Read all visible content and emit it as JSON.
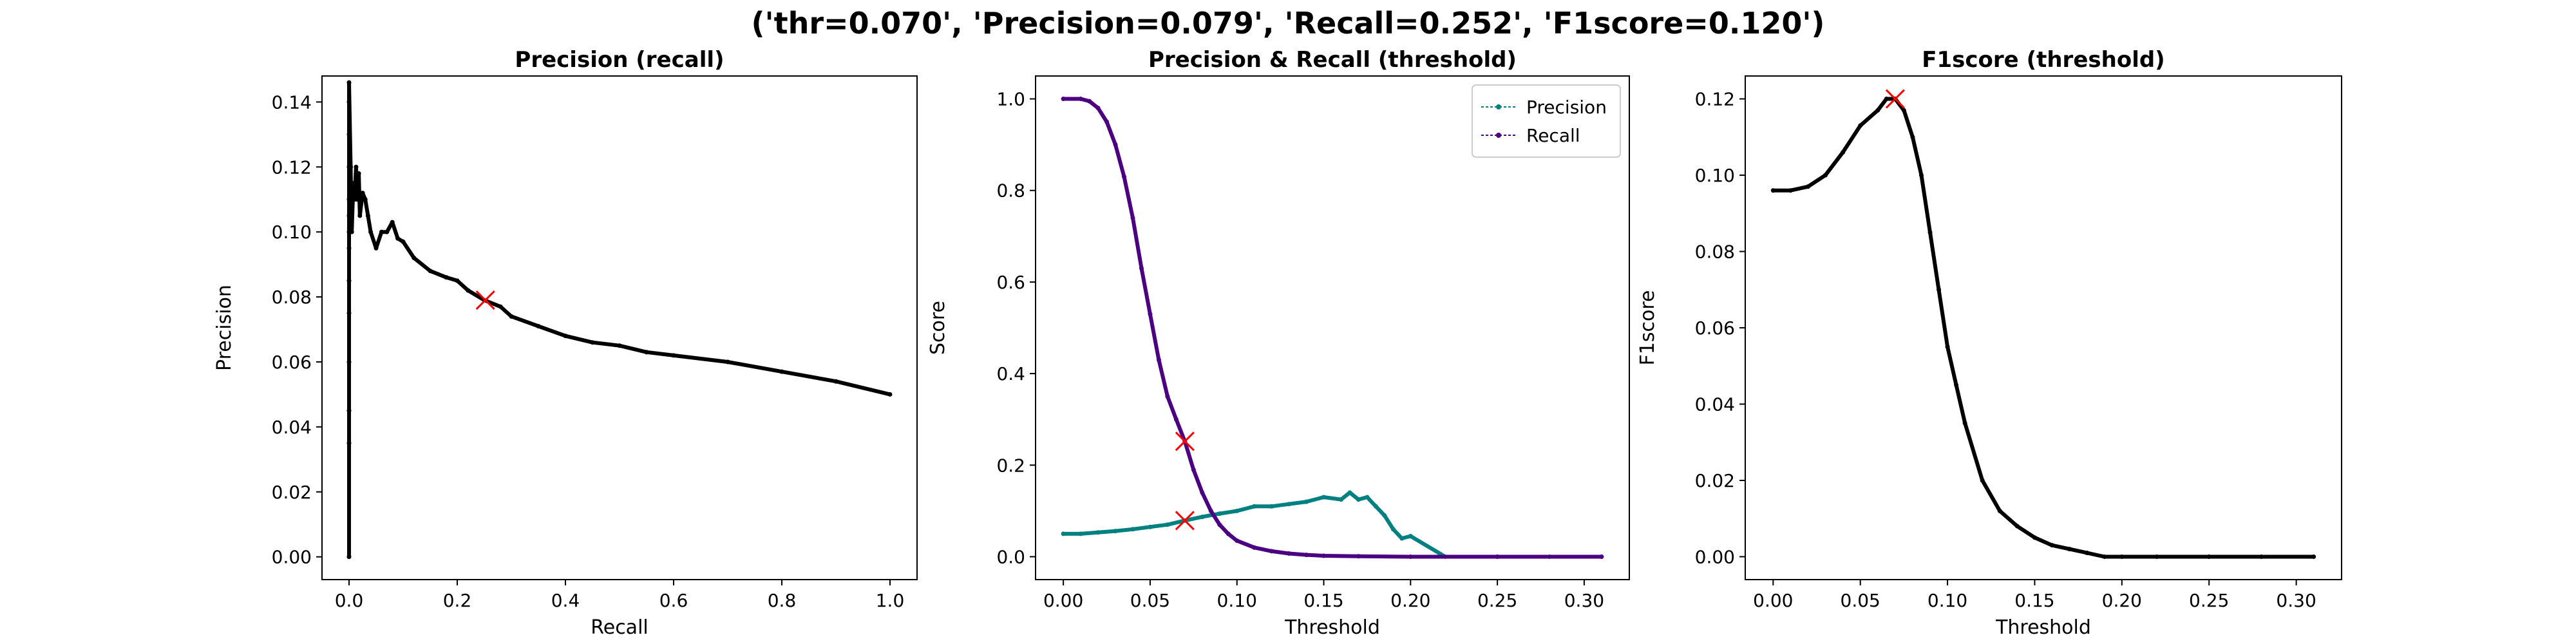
{
  "figure": {
    "suptitle": "('thr=0.070', 'Precision=0.079', 'Recall=0.252', 'F1score=0.120')",
    "colors": {
      "precision": "#008080",
      "recall": "#4b0082",
      "pr_curve": "#000000",
      "f1": "#000000",
      "marker": "#ff0000"
    }
  },
  "chart_data": [
    {
      "type": "line",
      "title": "Precision (recall)",
      "xlabel": "Recall",
      "ylabel": "Precision",
      "xlim": [
        -0.05,
        1.05
      ],
      "ylim": [
        -0.007,
        0.148
      ],
      "xticks": [
        "0.0",
        "0.2",
        "0.4",
        "0.6",
        "0.8",
        "1.0"
      ],
      "yticks": [
        "0.00",
        "0.02",
        "0.04",
        "0.06",
        "0.08",
        "0.10",
        "0.12",
        "0.14"
      ],
      "grid": false,
      "series": [
        {
          "color": "#000000",
          "x": [
            0.0,
            0.0,
            0.0,
            0.0,
            0.0,
            0.0,
            0.0,
            0.0,
            0.0,
            0.0,
            0.0,
            0.0,
            0.0,
            0.0,
            0.003,
            0.005,
            0.008,
            0.01,
            0.013,
            0.015,
            0.018,
            0.02,
            0.025,
            0.03,
            0.035,
            0.04,
            0.05,
            0.06,
            0.07,
            0.08,
            0.09,
            0.1,
            0.12,
            0.15,
            0.18,
            0.2,
            0.22,
            0.25,
            0.28,
            0.3,
            0.35,
            0.4,
            0.45,
            0.5,
            0.55,
            0.6,
            0.7,
            0.8,
            0.9,
            1.0
          ],
          "y": [
            0.0,
            0.035,
            0.045,
            0.06,
            0.075,
            0.085,
            0.095,
            0.1,
            0.105,
            0.11,
            0.12,
            0.13,
            0.14,
            0.146,
            0.12,
            0.1,
            0.115,
            0.11,
            0.12,
            0.11,
            0.118,
            0.105,
            0.112,
            0.11,
            0.105,
            0.1,
            0.095,
            0.1,
            0.1,
            0.103,
            0.098,
            0.097,
            0.092,
            0.088,
            0.086,
            0.085,
            0.082,
            0.079,
            0.077,
            0.074,
            0.071,
            0.068,
            0.066,
            0.065,
            0.063,
            0.062,
            0.06,
            0.057,
            0.054,
            0.05
          ]
        }
      ],
      "markers": [
        {
          "x": 0.252,
          "y": 0.079
        }
      ]
    },
    {
      "type": "line",
      "title": "Precision & Recall (threshold)",
      "xlabel": "Threshold",
      "ylabel": "Score",
      "xlim": [
        -0.016,
        0.326
      ],
      "ylim": [
        -0.05,
        1.05
      ],
      "xticks": [
        "0.00",
        "0.05",
        "0.10",
        "0.15",
        "0.20",
        "0.25",
        "0.30"
      ],
      "yticks": [
        "0.0",
        "0.2",
        "0.4",
        "0.6",
        "0.8",
        "1.0"
      ],
      "grid": false,
      "legend": {
        "position": "top-right"
      },
      "series": [
        {
          "name": "Precision",
          "color": "#008080",
          "x": [
            0.0,
            0.01,
            0.02,
            0.03,
            0.04,
            0.05,
            0.06,
            0.07,
            0.08,
            0.09,
            0.1,
            0.11,
            0.12,
            0.13,
            0.14,
            0.15,
            0.16,
            0.165,
            0.17,
            0.175,
            0.18,
            0.185,
            0.19,
            0.195,
            0.2,
            0.22,
            0.25,
            0.28,
            0.31
          ],
          "y": [
            0.05,
            0.05,
            0.053,
            0.056,
            0.06,
            0.065,
            0.07,
            0.079,
            0.087,
            0.094,
            0.1,
            0.11,
            0.11,
            0.115,
            0.12,
            0.13,
            0.125,
            0.14,
            0.125,
            0.13,
            0.11,
            0.09,
            0.06,
            0.04,
            0.045,
            0.0,
            0.0,
            0.0,
            0.0
          ]
        },
        {
          "name": "Recall",
          "color": "#4b0082",
          "x": [
            0.0,
            0.01,
            0.015,
            0.02,
            0.025,
            0.03,
            0.035,
            0.04,
            0.045,
            0.05,
            0.055,
            0.06,
            0.065,
            0.07,
            0.075,
            0.08,
            0.085,
            0.09,
            0.095,
            0.1,
            0.11,
            0.12,
            0.13,
            0.14,
            0.15,
            0.17,
            0.2,
            0.25,
            0.31
          ],
          "y": [
            1.0,
            1.0,
            0.995,
            0.98,
            0.95,
            0.9,
            0.83,
            0.74,
            0.63,
            0.53,
            0.43,
            0.35,
            0.3,
            0.252,
            0.19,
            0.14,
            0.1,
            0.07,
            0.05,
            0.035,
            0.02,
            0.012,
            0.007,
            0.004,
            0.002,
            0.001,
            0.0,
            0.0,
            0.0
          ]
        }
      ],
      "markers": [
        {
          "x": 0.07,
          "y": 0.252
        },
        {
          "x": 0.07,
          "y": 0.079
        }
      ]
    },
    {
      "type": "line",
      "title": "F1score (threshold)",
      "xlabel": "Threshold",
      "ylabel": "F1score",
      "xlim": [
        -0.016,
        0.326
      ],
      "ylim": [
        -0.006,
        0.126
      ],
      "xticks": [
        "0.00",
        "0.05",
        "0.10",
        "0.15",
        "0.20",
        "0.25",
        "0.30"
      ],
      "yticks": [
        "0.00",
        "0.02",
        "0.04",
        "0.06",
        "0.08",
        "0.10",
        "0.12"
      ],
      "grid": false,
      "series": [
        {
          "color": "#000000",
          "x": [
            0.0,
            0.01,
            0.02,
            0.03,
            0.04,
            0.05,
            0.06,
            0.065,
            0.07,
            0.075,
            0.08,
            0.085,
            0.09,
            0.095,
            0.1,
            0.105,
            0.11,
            0.12,
            0.13,
            0.14,
            0.15,
            0.16,
            0.17,
            0.18,
            0.19,
            0.2,
            0.22,
            0.25,
            0.28,
            0.31
          ],
          "y": [
            0.096,
            0.096,
            0.097,
            0.1,
            0.106,
            0.113,
            0.117,
            0.12,
            0.12,
            0.117,
            0.11,
            0.1,
            0.085,
            0.07,
            0.055,
            0.045,
            0.035,
            0.02,
            0.012,
            0.008,
            0.005,
            0.003,
            0.002,
            0.001,
            0.0,
            0.0,
            0.0,
            0.0,
            0.0,
            0.0
          ]
        }
      ],
      "markers": [
        {
          "x": 0.07,
          "y": 0.12
        }
      ]
    }
  ]
}
